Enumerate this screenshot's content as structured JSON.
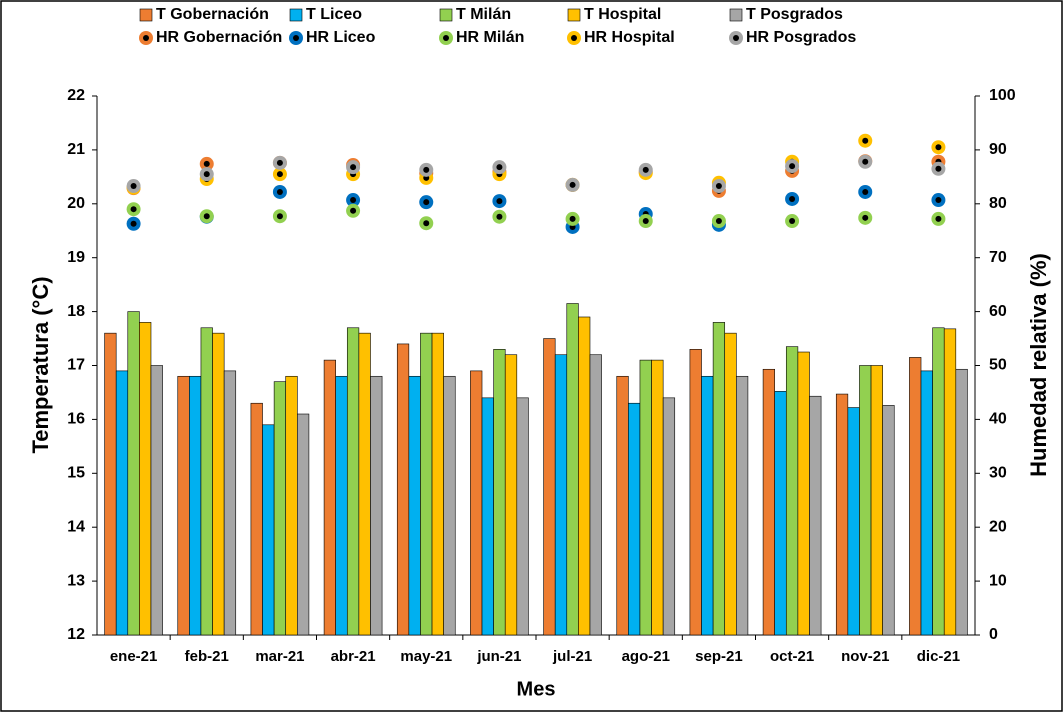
{
  "chart_data": {
    "type": "bar",
    "categories": [
      "ene-21",
      "feb-21",
      "mar-21",
      "abr-21",
      "may-21",
      "jun-21",
      "jul-21",
      "ago-21",
      "sep-21",
      "oct-21",
      "nov-21",
      "dic-21"
    ],
    "x_label": "Mes",
    "y_label": "Temperatura (°C)",
    "y2_label": "Humedad relativa (%)",
    "ylim": [
      12,
      22
    ],
    "yticks": [
      12,
      13,
      14,
      15,
      16,
      17,
      18,
      19,
      20,
      21,
      22
    ],
    "y2lim": [
      0,
      100
    ],
    "y2ticks": [
      0,
      10,
      20,
      30,
      40,
      50,
      60,
      70,
      80,
      90,
      100
    ],
    "grid": false,
    "legend": "top",
    "series": [
      {
        "name": "T Gobernación",
        "type": "bar",
        "color": "#ED7D31",
        "values": [
          17.6,
          16.8,
          16.3,
          17.1,
          17.4,
          16.9,
          17.5,
          16.8,
          17.3,
          16.93,
          16.47,
          17.15
        ]
      },
      {
        "name": "T Liceo",
        "type": "bar",
        "color": "#00B0F0",
        "values": [
          16.9,
          16.8,
          15.9,
          16.8,
          16.8,
          16.4,
          17.2,
          16.3,
          16.8,
          16.52,
          16.22,
          16.9
        ]
      },
      {
        "name": "T Milán",
        "type": "bar",
        "color": "#92D050",
        "values": [
          18.0,
          17.7,
          16.7,
          17.7,
          17.6,
          17.3,
          18.15,
          17.1,
          17.8,
          17.35,
          17.0,
          17.7
        ]
      },
      {
        "name": "T Hospital",
        "type": "bar",
        "color": "#FFC000",
        "values": [
          17.8,
          17.6,
          16.8,
          17.6,
          17.6,
          17.2,
          17.9,
          17.1,
          17.6,
          17.25,
          17.0,
          17.68
        ]
      },
      {
        "name": "T Posgrados",
        "type": "bar",
        "color": "#A6A6A6",
        "values": [
          17.0,
          16.9,
          16.1,
          16.8,
          16.8,
          16.4,
          17.2,
          16.4,
          16.8,
          16.43,
          16.26,
          16.93
        ]
      },
      {
        "name": "HR Gobernación",
        "type": "scatter",
        "axis": "y2",
        "color": "#ED7D31",
        "values": [
          82.9,
          87.4,
          87.6,
          87.2,
          85.7,
          85.9,
          83.5,
          85.9,
          82.4,
          86.1,
          87.9,
          87.8
        ]
      },
      {
        "name": "HR Liceo",
        "type": "scatter",
        "axis": "y2",
        "color": "#0070C0",
        "values": [
          76.3,
          77.6,
          82.2,
          80.7,
          80.3,
          80.5,
          75.7,
          78.1,
          76.1,
          80.9,
          82.2,
          80.7
        ]
      },
      {
        "name": "HR Milán",
        "type": "scatter",
        "axis": "y2",
        "color": "#92D050",
        "values": [
          79.0,
          77.7,
          77.7,
          78.7,
          76.4,
          77.6,
          77.2,
          76.8,
          76.8,
          76.8,
          77.4,
          77.2
        ]
      },
      {
        "name": "HR Hospital",
        "type": "scatter",
        "axis": "y2",
        "color": "#FFC000",
        "values": [
          83.0,
          84.6,
          85.5,
          85.5,
          84.8,
          85.5,
          83.5,
          85.7,
          83.9,
          87.8,
          91.7,
          90.5
        ]
      },
      {
        "name": "HR Posgrados",
        "type": "scatter",
        "axis": "y2",
        "color": "#A6A6A6",
        "values": [
          83.3,
          85.5,
          87.6,
          86.8,
          86.3,
          86.8,
          83.5,
          86.3,
          83.3,
          87.0,
          87.8,
          86.5
        ]
      }
    ]
  }
}
